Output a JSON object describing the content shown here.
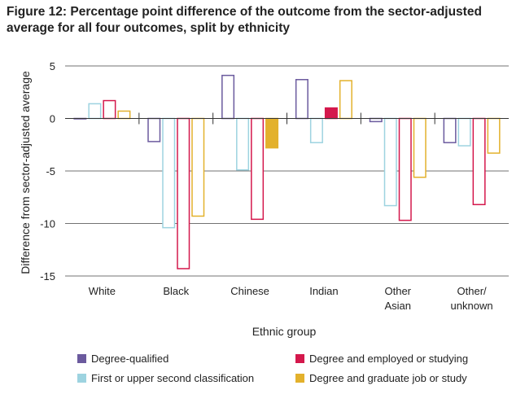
{
  "title": "Figure 12: Percentage point difference of the outcome from the sector-adjusted average for all four outcomes, split by ethnicity",
  "chart_data": {
    "type": "bar",
    "title": "Figure 12: Percentage point difference of the outcome from the sector-adjusted average for all four outcomes, split by ethnicity",
    "xlabel": "Ethnic group",
    "ylabel": "Difference from sector-adjusted average",
    "ylim": [
      -15,
      5
    ],
    "yticks": [
      5,
      0,
      -5,
      -10,
      -15
    ],
    "ytick_labels": [
      "5",
      "0",
      "-5",
      "-10",
      "-15"
    ],
    "grid": true,
    "categories": [
      [
        "White"
      ],
      [
        "Black"
      ],
      [
        "Chinese"
      ],
      [
        "Indian"
      ],
      [
        "Other",
        "Asian"
      ],
      [
        "Other/",
        "unknown"
      ]
    ],
    "series": [
      {
        "name": "Degree-qualified",
        "color": "#6b5a9e",
        "filled": false,
        "values": [
          0,
          -2.2,
          4.1,
          3.7,
          -0.3,
          -2.3
        ]
      },
      {
        "name": "First or upper second classification",
        "color": "#9dd3e0",
        "filled": false,
        "values": [
          1.4,
          -10.4,
          -4.9,
          -2.3,
          -8.3,
          -2.6
        ]
      },
      {
        "name": "Degree and employed or studying",
        "color": "#d4184c",
        "filled": false,
        "filled_when_positive": true,
        "values": [
          1.7,
          -14.3,
          -9.6,
          1.0,
          -9.7,
          -8.2
        ]
      },
      {
        "name": "Degree and graduate job or study",
        "color": "#e3b12c",
        "filled": false,
        "values": [
          0.7,
          -9.3,
          -2.8,
          3.6,
          -5.6,
          -3.3
        ]
      }
    ],
    "filled_bars": [
      [
        2,
        3
      ],
      [
        3,
        2
      ]
    ],
    "legend": [
      {
        "label": "Degree-qualified",
        "color": "#6b5a9e"
      },
      {
        "label": "Degree and employed or studying",
        "color": "#d4184c"
      },
      {
        "label": "First or upper second classification",
        "color": "#9dd3e0"
      },
      {
        "label": "Degree and graduate job or study",
        "color": "#e3b12c"
      }
    ]
  }
}
